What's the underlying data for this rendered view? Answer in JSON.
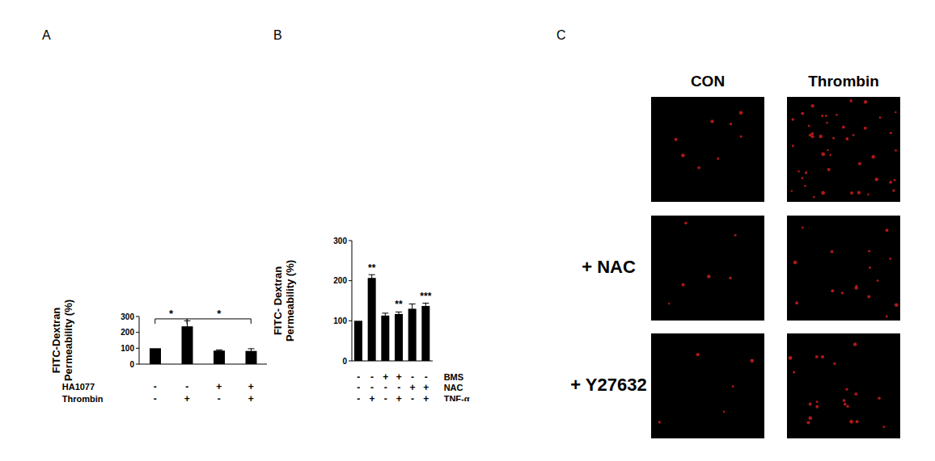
{
  "chart_data": [
    {
      "type": "bar",
      "panel_label": "A",
      "y_label": [
        "FITC-Dextran",
        "Permeability (%)"
      ],
      "categories": [
        null,
        null,
        null,
        null
      ],
      "values": [
        100,
        238,
        85,
        83
      ],
      "errors": [
        0,
        35,
        5,
        14
      ],
      "color": "#000000",
      "ylim": [
        0,
        300
      ],
      "yticks": [
        0,
        100,
        200,
        300
      ],
      "conditions": [
        {
          "name": "HA1077",
          "values": [
            "-",
            "-",
            "+",
            "+"
          ]
        },
        {
          "name": "Thrombin",
          "values": [
            "-",
            "+",
            "-",
            "+"
          ]
        }
      ],
      "comparisons": [
        {
          "from": 0,
          "to": 1,
          "y": 285,
          "label": "*"
        },
        {
          "from": 1,
          "to": 3,
          "y": 285,
          "label": "*"
        }
      ]
    },
    {
      "type": "bar",
      "panel_label": "B",
      "y_label": [
        "FITC- Dextran",
        "Permeability (%)"
      ],
      "categories": [
        null,
        null,
        null,
        null,
        null,
        null
      ],
      "values": [
        100,
        207,
        113,
        117,
        130,
        137
      ],
      "errors": [
        0,
        8,
        6,
        5,
        12,
        7
      ],
      "significance": [
        null,
        "**",
        null,
        "**",
        null,
        "***"
      ],
      "color": "#000000",
      "ylim": [
        0,
        300
      ],
      "yticks": [
        0,
        100,
        200,
        300
      ],
      "conditions": [
        {
          "name": "BMS",
          "values": [
            "-",
            "-",
            "+",
            "+",
            "-",
            "-"
          ]
        },
        {
          "name": "NAC",
          "values": [
            "-",
            "-",
            "-",
            "-",
            "+",
            "+"
          ]
        },
        {
          "name": "TNF-α",
          "values": [
            "-",
            "+",
            "-",
            "+",
            "-",
            "+"
          ]
        }
      ]
    }
  ],
  "image_panel": {
    "panel_label": "C",
    "columns": [
      "CON",
      "Thrombin"
    ],
    "rows": [
      null,
      "+ NAC",
      "+ Y27632"
    ]
  }
}
